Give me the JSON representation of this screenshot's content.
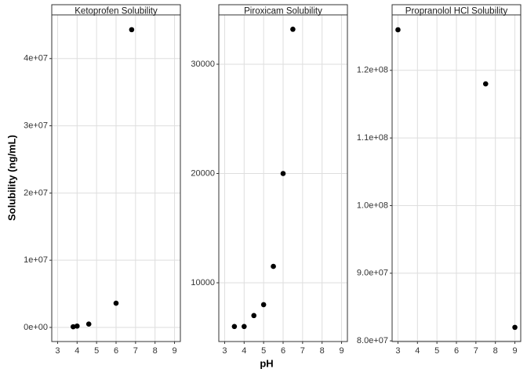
{
  "axis_labels": {
    "x": "pH",
    "y": "Solubility (ng/mL)"
  },
  "chart_data": [
    {
      "type": "scatter",
      "title": "Ketoprofen Solubility",
      "color": "#000000",
      "grid": true,
      "x": [
        3.8,
        4,
        4.6,
        6,
        6.8
      ],
      "values": [
        100000,
        200000,
        500000,
        3600000,
        44300000
      ],
      "xlim": [
        2.7,
        9.3
      ],
      "xticks": [
        3,
        4,
        5,
        6,
        7,
        8,
        9
      ],
      "ylim": [
        -2100000,
        46500000
      ],
      "yticks": [
        {
          "value": 0,
          "label": "0e+00"
        },
        {
          "value": 10000000,
          "label": "1e+07"
        },
        {
          "value": 20000000,
          "label": "2e+07"
        },
        {
          "value": 30000000,
          "label": "3e+07"
        },
        {
          "value": 40000000,
          "label": "4e+07"
        }
      ]
    },
    {
      "type": "scatter",
      "title": "Piroxicam Solubility",
      "color": "#000000",
      "grid": true,
      "x": [
        3.5,
        4,
        4.5,
        5,
        5.5,
        6,
        6.5
      ],
      "values": [
        6000,
        6000,
        7000,
        8000,
        11500,
        20000,
        33200
      ],
      "xlim": [
        2.7,
        9.3
      ],
      "xticks": [
        3,
        4,
        5,
        6,
        7,
        8,
        9
      ],
      "ylim": [
        4624,
        34516
      ],
      "yticks": [
        10000,
        20000,
        30000
      ]
    },
    {
      "type": "scatter",
      "title": "Propranolol HCl Solubility",
      "color": "#000000",
      "grid": true,
      "x": [
        3,
        7.5,
        9
      ],
      "values": [
        126000000,
        118000000,
        82000000
      ],
      "xlim": [
        2.7,
        9.3
      ],
      "xticks": [
        3,
        4,
        5,
        6,
        7,
        8,
        9
      ],
      "ylim": [
        79900000,
        128200000
      ],
      "yticks": [
        {
          "value": 80000000,
          "label": "8.0e+07"
        },
        {
          "value": 90000000,
          "label": "9.0e+07"
        },
        {
          "value": 100000000,
          "label": "1.0e+08"
        },
        {
          "value": 110000000,
          "label": "1.1e+08"
        },
        {
          "value": 120000000,
          "label": "1.2e+08"
        }
      ]
    }
  ]
}
